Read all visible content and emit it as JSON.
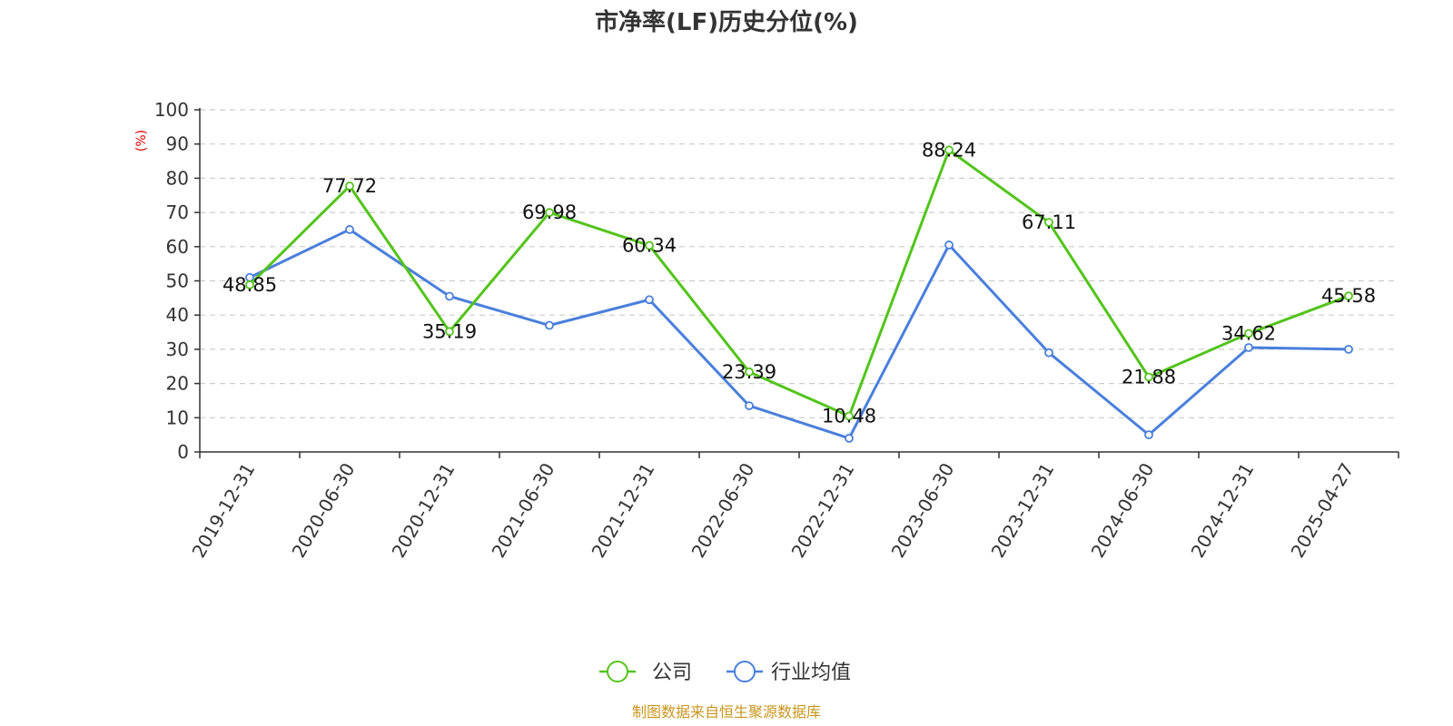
{
  "chart_data": {
    "type": "line",
    "title": "市净率(LF)历史分位(%)",
    "ylabel": "(%)",
    "xlabel": "",
    "ylim": [
      0,
      100
    ],
    "yticks": [
      0,
      10,
      20,
      30,
      40,
      50,
      60,
      70,
      80,
      90,
      100
    ],
    "grid": true,
    "legend_position": "bottom-center",
    "categories": [
      "2019-12-31",
      "2020-06-30",
      "2020-12-31",
      "2021-06-30",
      "2021-12-31",
      "2022-06-30",
      "2022-12-31",
      "2023-06-30",
      "2023-12-31",
      "2024-06-30",
      "2024-12-31",
      "2025-04-27"
    ],
    "series": [
      {
        "name": "公司",
        "color": "#52c41a",
        "values": [
          48.85,
          77.72,
          35.19,
          69.98,
          60.34,
          23.39,
          10.48,
          88.24,
          67.11,
          21.88,
          34.62,
          45.58
        ],
        "labels": [
          "48.85",
          "77.72",
          "35.19",
          "69.98",
          "60.34",
          "23.39",
          "10.48",
          "88.24",
          "67.11",
          "21.88",
          "34.62",
          "45.58"
        ]
      },
      {
        "name": "行业均值",
        "color": "#4a7fdc",
        "values": [
          51.0,
          65.0,
          45.5,
          37.0,
          44.5,
          13.5,
          4.0,
          60.5,
          29.0,
          5.0,
          30.5,
          30.0
        ]
      }
    ],
    "source_note": "制图数据来自恒生聚源数据库",
    "source_color": "#c8961e",
    "ylabel_color": "#e00000"
  }
}
